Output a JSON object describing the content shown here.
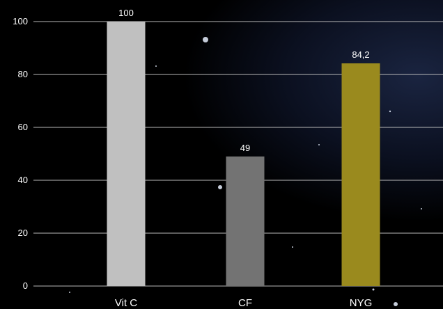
{
  "chart_data": {
    "type": "bar",
    "title": "",
    "xlabel": "",
    "ylabel": "",
    "ylim": [
      0,
      100
    ],
    "yticks": [
      0,
      20,
      40,
      60,
      80,
      100
    ],
    "grid": "horizontal",
    "categories": [
      "Vit C",
      "CF",
      "NYG"
    ],
    "values": [
      100,
      49,
      84.2
    ],
    "data_labels": [
      "100",
      "49",
      "84,2"
    ],
    "colors": [
      "#c0c0c0",
      "#737373",
      "#9a8a1e"
    ]
  }
}
